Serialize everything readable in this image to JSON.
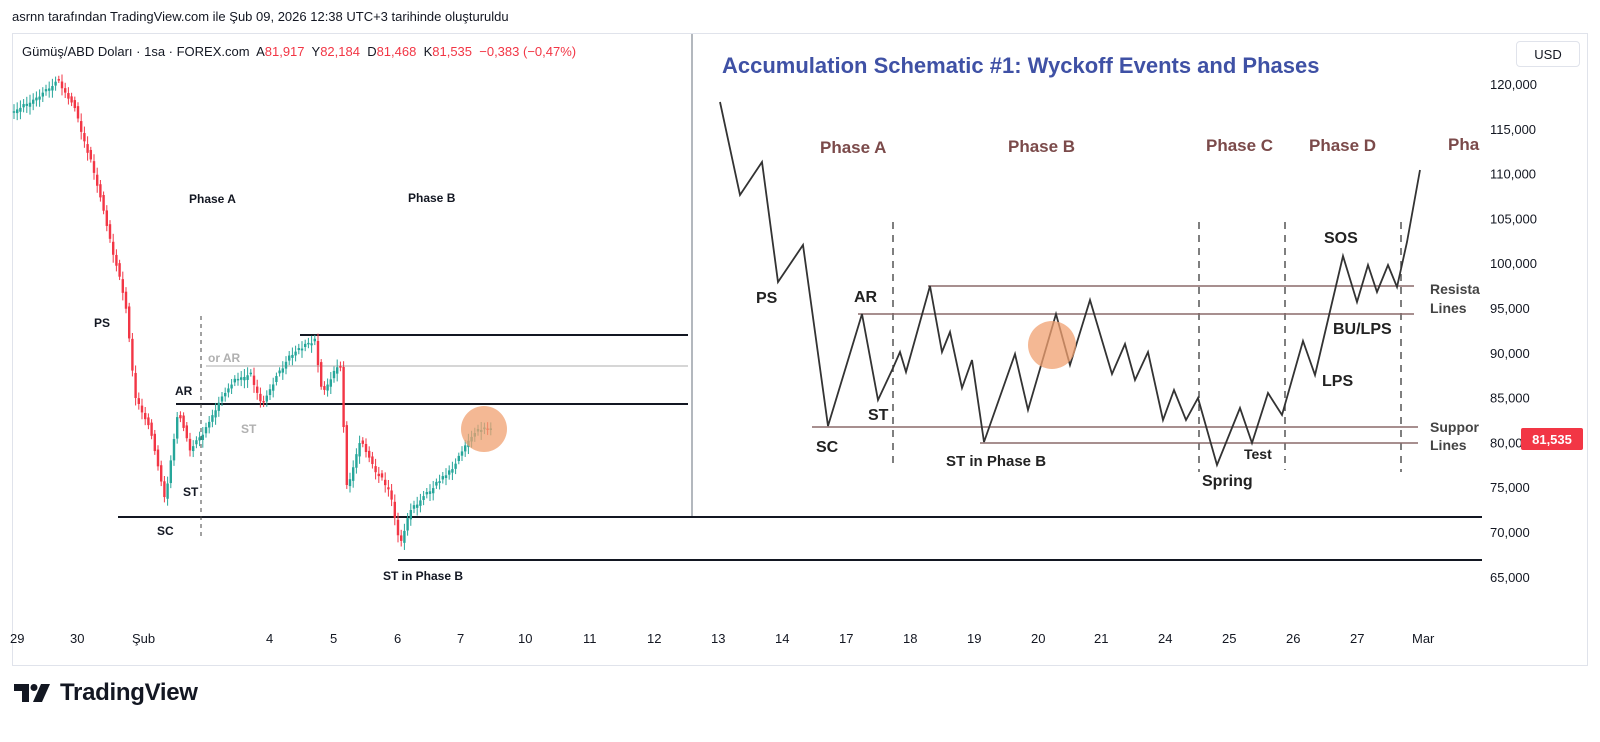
{
  "header": {
    "caption": "asrnn tarafından TradingView.com ile Şub 09, 2026 12:38 UTC+3 tarihinde oluşturuldu"
  },
  "symbol_bar": {
    "name": "Gümüş/ABD Doları · 1sa · FOREX.com",
    "open_label": "A",
    "open": "81,917",
    "high_label": "Y",
    "high": "82,184",
    "low_label": "D",
    "low": "81,468",
    "close_label": "K",
    "close": "81,535",
    "change": "−0,383 (−0,47%)"
  },
  "currency_button": "USD",
  "price_axis": {
    "ticks": [
      "120,000",
      "115,000",
      "110,000",
      "105,000",
      "100,000",
      "95,000",
      "90,000",
      "85,000",
      "80,000",
      "75,000",
      "70,000",
      "65,000"
    ],
    "current_price": "81,535"
  },
  "time_axis": {
    "ticks": [
      "29",
      "30",
      "Şub",
      "4",
      "5",
      "6",
      "7",
      "10",
      "11",
      "12",
      "13",
      "14",
      "17",
      "18",
      "19",
      "20",
      "21",
      "24",
      "25",
      "26",
      "27",
      "Mar"
    ]
  },
  "chart_annotations": {
    "phase_a": "Phase A",
    "phase_b": "Phase B",
    "ps": "PS",
    "ar": "AR",
    "or_ar": "or AR",
    "st_gray": "ST",
    "st": "ST",
    "sc": "SC",
    "st_in_phase_b": "ST in Phase B"
  },
  "schematic": {
    "title": "Accumulation Schematic #1: Wyckoff Events and Phases",
    "phase_a": "Phase A",
    "phase_b": "Phase B",
    "phase_c": "Phase C",
    "phase_d": "Phase D",
    "phase_e": "Pha",
    "ps": "PS",
    "ar": "AR",
    "st": "ST",
    "sc": "SC",
    "st_in_phase_b": "ST in Phase B",
    "spring": "Spring",
    "test": "Test",
    "sos": "SOS",
    "bu_lps": "BU/LPS",
    "lps": "LPS",
    "resistance_1": "Resista",
    "resistance_2": "Lines",
    "support_1": "Suppor",
    "support_2": "Lines"
  },
  "brand": {
    "wordmark": "TradingView"
  },
  "colors": {
    "up": "#26a69a",
    "down": "#f23645",
    "schematic_title": "#3f51a5",
    "phase_label": "#7b4a4a",
    "highlight": "#f0a070"
  }
}
